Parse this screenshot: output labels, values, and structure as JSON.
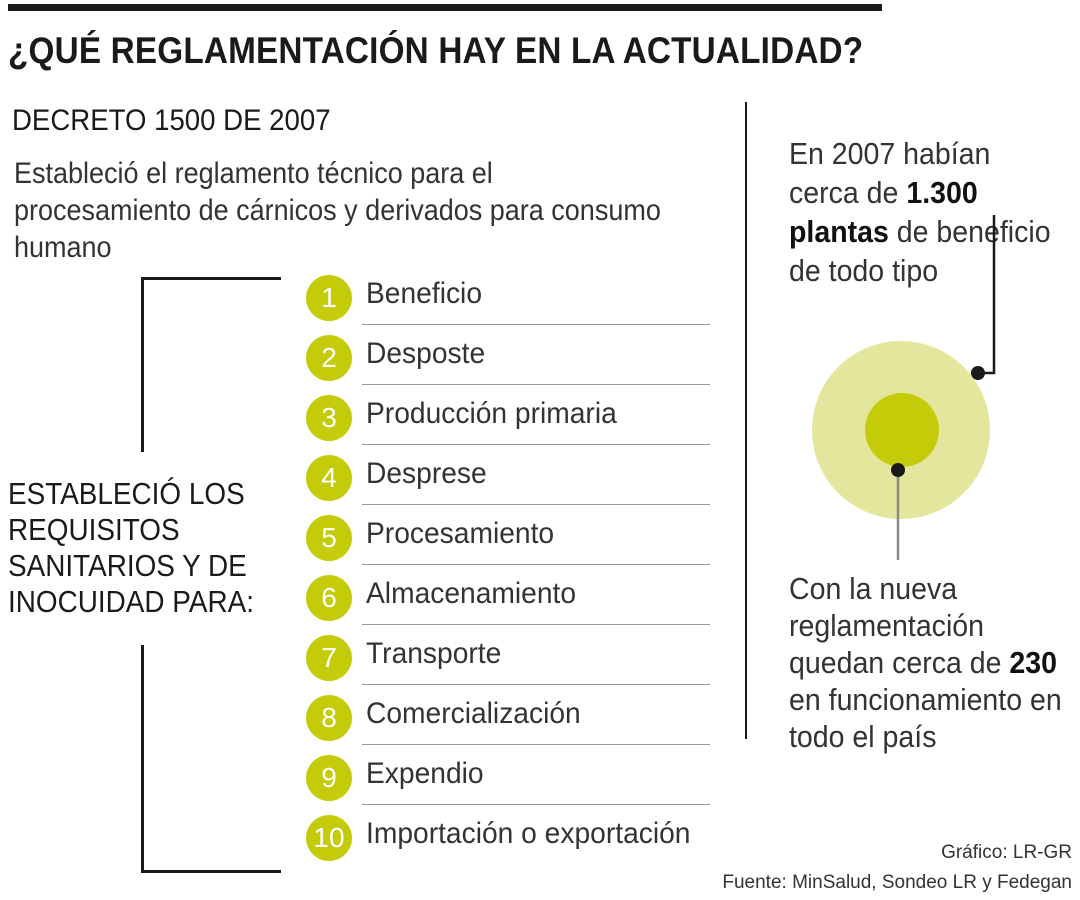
{
  "header": {
    "title": "¿QUÉ REGLAMENTACIÓN HAY EN LA ACTUALIDAD?"
  },
  "decree": {
    "name": "DECRETO 1500 DE 2007",
    "description": "Estableció el reglamento técnico para el procesamiento de cárnicos y derivados para consumo humano"
  },
  "requirements": {
    "lines": [
      "ESTABLECIÓ LOS",
      "REQUISITOS",
      "SANITARIOS Y DE",
      "INOCUIDAD PARA:"
    ],
    "steps": [
      {
        "num": "1",
        "label": "Beneficio"
      },
      {
        "num": "2",
        "label": "Desposte"
      },
      {
        "num": "3",
        "label": "Producción primaria"
      },
      {
        "num": "4",
        "label": "Desprese"
      },
      {
        "num": "5",
        "label": "Procesamiento"
      },
      {
        "num": "6",
        "label": "Almacenamiento"
      },
      {
        "num": "7",
        "label": "Transporte"
      },
      {
        "num": "8",
        "label": "Comercialización"
      },
      {
        "num": "9",
        "label": "Expendio"
      },
      {
        "num": "10",
        "label": "Importación o exportación"
      }
    ]
  },
  "stats": {
    "before": {
      "pre": "En 2007 habían cerca de",
      "number": "1.300",
      "bold_word": "plantas",
      "post": "de beneficio de todo tipo"
    },
    "after": {
      "pre": "Con la nueva reglamentación quedan cerca de",
      "number": "230",
      "post": "en funcionamiento en todo el país"
    }
  },
  "colors": {
    "accent": "#c4cc0a",
    "accent_light": "#e3e69c",
    "text": "#1a1a1a"
  },
  "footer": {
    "graphic": "Gráfico: LR-GR",
    "source": "Fuente: MinSalud, Sondeo LR y Fedegan"
  }
}
